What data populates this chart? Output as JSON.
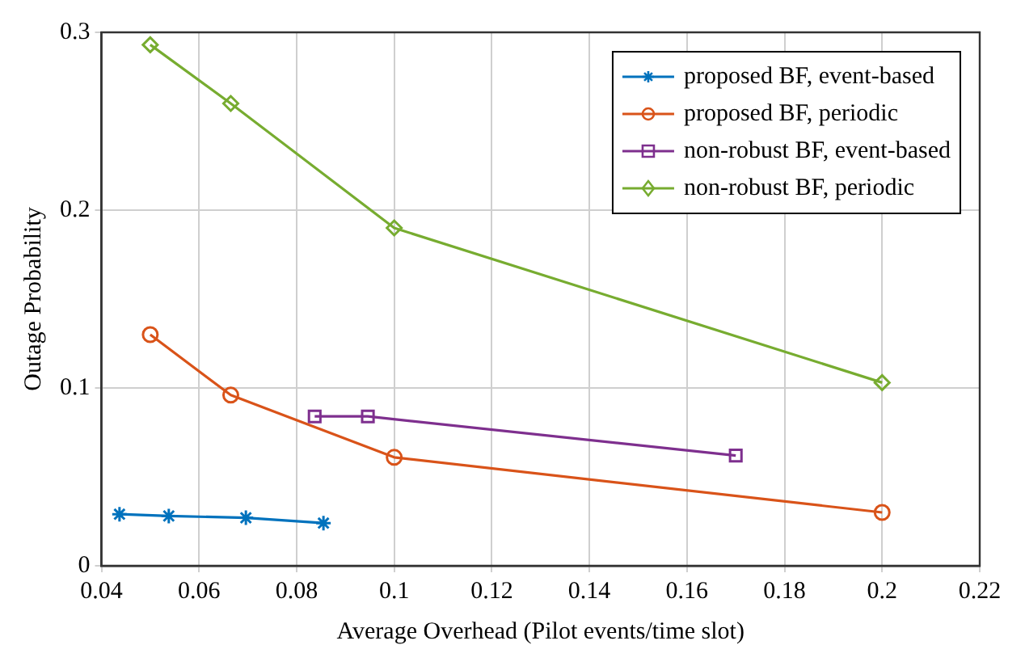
{
  "chart_data": {
    "type": "line",
    "xlabel": "Average Overhead (Pilot events/time slot)",
    "ylabel": "Outage Probability",
    "xlim": [
      0.04,
      0.22
    ],
    "xticks": [
      0.04,
      0.06,
      0.08,
      0.1,
      0.12,
      0.14,
      0.16,
      0.18,
      0.2,
      0.22
    ],
    "ylim": [
      0,
      0.3
    ],
    "yticks": [
      0,
      0.1,
      0.2,
      0.3
    ],
    "grid": true,
    "legend": "top right",
    "line_style": "solid",
    "series": [
      {
        "name": "proposed BF, event-based",
        "color": "#0072bd",
        "marker": "cross",
        "x": [
          0.0437,
          0.0538,
          0.0696,
          0.0855
        ],
        "values": [
          0.029,
          0.028,
          0.027,
          0.024
        ]
      },
      {
        "name": "proposed BF, periodic",
        "color": "#d95319",
        "marker": "circle",
        "x": [
          0.05,
          0.0665,
          0.1,
          0.2
        ],
        "values": [
          0.13,
          0.096,
          0.061,
          0.03
        ]
      },
      {
        "name": "non-robust BF, event-based",
        "color": "#7e2f8e",
        "marker": "square",
        "x": [
          0.0837,
          0.0946,
          0.17
        ],
        "values": [
          0.084,
          0.084,
          0.062
        ]
      },
      {
        "name": "non-robust BF, periodic",
        "color": "#77ac30",
        "marker": "diamond",
        "x": [
          0.05,
          0.0665,
          0.1,
          0.2
        ],
        "values": [
          0.293,
          0.26,
          0.19,
          0.103
        ]
      }
    ]
  }
}
